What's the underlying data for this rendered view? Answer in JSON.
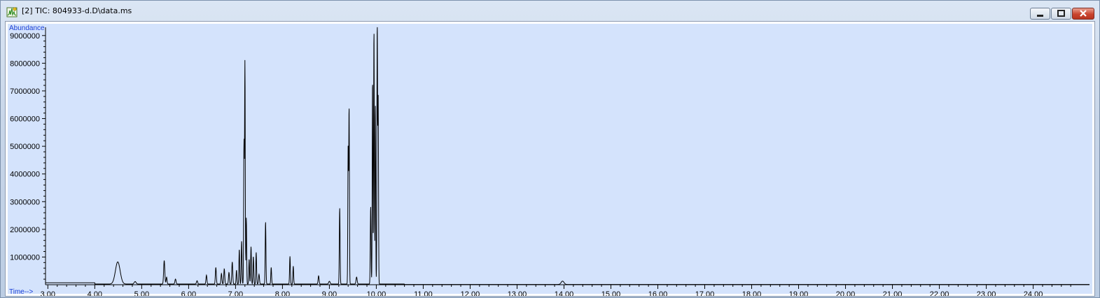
{
  "window": {
    "title": "[2] TIC: 804933-d.D\\data.ms",
    "icon": "chromatogram-app-icon",
    "buttons": {
      "minimize": "minimize-icon",
      "maximize": "maximize-icon",
      "close": "close-icon"
    }
  },
  "colors": {
    "plot_background": "#d4e3fc",
    "trace": "#000000",
    "axis_label": "#1a3fd6",
    "frame": "#ffffff"
  },
  "chart_data": {
    "type": "line",
    "title": "",
    "xlabel": "Time-->",
    "ylabel": "Abundance",
    "xlim": [
      2.95,
      25.2
    ],
    "ylim": [
      0,
      9500000
    ],
    "x_ticks": [
      "3.00",
      "4.00",
      "5.00",
      "6.00",
      "7.00",
      "8.00",
      "9.00",
      "10.00",
      "11.00",
      "12.00",
      "13.00",
      "14.00",
      "15.00",
      "16.00",
      "17.00",
      "18.00",
      "19.00",
      "20.00",
      "21.00",
      "22.00",
      "23.00",
      "24.00"
    ],
    "y_ticks": [
      "1000000",
      "2000000",
      "3000000",
      "4000000",
      "5000000",
      "6000000",
      "7000000",
      "8000000",
      "9000000"
    ],
    "grid": false,
    "legend": "none",
    "baseline": 70000,
    "series": [
      {
        "peaks": [
          {
            "rt": 4.49,
            "height": 800000,
            "width": 0.05
          },
          {
            "rt": 4.86,
            "height": 90000,
            "width": 0.02
          },
          {
            "rt": 5.48,
            "height": 850000,
            "width": 0.012
          },
          {
            "rt": 5.53,
            "height": 250000,
            "width": 0.01
          },
          {
            "rt": 5.72,
            "height": 180000,
            "width": 0.012
          },
          {
            "rt": 6.18,
            "height": 120000,
            "width": 0.012
          },
          {
            "rt": 6.38,
            "height": 320000,
            "width": 0.01
          },
          {
            "rt": 6.58,
            "height": 600000,
            "width": 0.01
          },
          {
            "rt": 6.7,
            "height": 380000,
            "width": 0.01
          },
          {
            "rt": 6.76,
            "height": 550000,
            "width": 0.01
          },
          {
            "rt": 6.86,
            "height": 420000,
            "width": 0.01
          },
          {
            "rt": 6.93,
            "height": 800000,
            "width": 0.01
          },
          {
            "rt": 7.02,
            "height": 500000,
            "width": 0.008
          },
          {
            "rt": 7.08,
            "height": 1250000,
            "width": 0.008
          },
          {
            "rt": 7.13,
            "height": 1550000,
            "width": 0.008
          },
          {
            "rt": 7.18,
            "height": 5100000,
            "width": 0.007
          },
          {
            "rt": 7.2,
            "height": 8000000,
            "width": 0.007
          },
          {
            "rt": 7.23,
            "height": 2400000,
            "width": 0.007
          },
          {
            "rt": 7.29,
            "height": 900000,
            "width": 0.008
          },
          {
            "rt": 7.33,
            "height": 1350000,
            "width": 0.008
          },
          {
            "rt": 7.38,
            "height": 1000000,
            "width": 0.008
          },
          {
            "rt": 7.44,
            "height": 1150000,
            "width": 0.008
          },
          {
            "rt": 7.5,
            "height": 350000,
            "width": 0.01
          },
          {
            "rt": 7.64,
            "height": 2250000,
            "width": 0.008
          },
          {
            "rt": 7.76,
            "height": 600000,
            "width": 0.008
          },
          {
            "rt": 8.16,
            "height": 1000000,
            "width": 0.008
          },
          {
            "rt": 8.23,
            "height": 650000,
            "width": 0.008
          },
          {
            "rt": 8.77,
            "height": 300000,
            "width": 0.01
          },
          {
            "rt": 9.0,
            "height": 100000,
            "width": 0.015
          },
          {
            "rt": 9.22,
            "height": 2750000,
            "width": 0.008
          },
          {
            "rt": 9.4,
            "height": 5000000,
            "width": 0.007
          },
          {
            "rt": 9.42,
            "height": 6350000,
            "width": 0.007
          },
          {
            "rt": 9.58,
            "height": 250000,
            "width": 0.012
          },
          {
            "rt": 9.88,
            "height": 2800000,
            "width": 0.008
          },
          {
            "rt": 9.92,
            "height": 7400000,
            "width": 0.007
          },
          {
            "rt": 9.95,
            "height": 9200000,
            "width": 0.007
          },
          {
            "rt": 9.98,
            "height": 6500000,
            "width": 0.007
          },
          {
            "rt": 10.02,
            "height": 9350000,
            "width": 0.007
          },
          {
            "rt": 10.04,
            "height": 6700000,
            "width": 0.007
          },
          {
            "rt": 13.97,
            "height": 120000,
            "width": 0.03
          }
        ]
      }
    ]
  }
}
